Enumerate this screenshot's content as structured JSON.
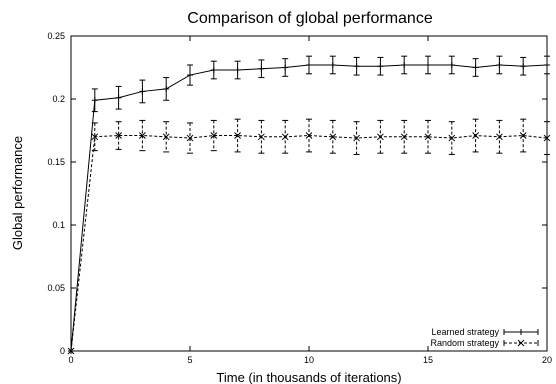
{
  "chart_data": {
    "type": "line",
    "title": "Comparison of global performance",
    "xlabel": "Time (in thousands of iterations)",
    "ylabel": "Global performance",
    "xlim": [
      0,
      20
    ],
    "ylim": [
      0,
      0.25
    ],
    "x_ticks": [
      "0",
      "5",
      "10",
      "15",
      "20"
    ],
    "y_ticks": [
      "0",
      "0.05",
      "0.1",
      "0.15",
      "0.2",
      "0.25"
    ],
    "grid": false,
    "legend_position": "bottom-right",
    "x": [
      0,
      1,
      2,
      3,
      4,
      5,
      6,
      7,
      8,
      9,
      10,
      11,
      12,
      13,
      14,
      15,
      16,
      17,
      18,
      19,
      20
    ],
    "series": [
      {
        "name": "Learned strategy",
        "style": "solid",
        "marker": "plus",
        "color": "#000000",
        "values": [
          0,
          0.199,
          0.201,
          0.206,
          0.208,
          0.219,
          0.223,
          0.223,
          0.224,
          0.225,
          0.227,
          0.227,
          0.226,
          0.226,
          0.227,
          0.227,
          0.227,
          0.225,
          0.227,
          0.226,
          0.227
        ],
        "error": [
          0,
          0.009,
          0.009,
          0.009,
          0.009,
          0.008,
          0.007,
          0.007,
          0.007,
          0.007,
          0.007,
          0.007,
          0.007,
          0.007,
          0.007,
          0.007,
          0.007,
          0.007,
          0.007,
          0.007,
          0.007
        ]
      },
      {
        "name": "Random strategy",
        "style": "dashed",
        "marker": "x",
        "color": "#000000",
        "values": [
          0,
          0.17,
          0.171,
          0.171,
          0.17,
          0.169,
          0.171,
          0.171,
          0.17,
          0.17,
          0.171,
          0.17,
          0.169,
          0.17,
          0.17,
          0.17,
          0.169,
          0.171,
          0.17,
          0.171,
          0.169
        ],
        "error": [
          0,
          0.011,
          0.011,
          0.012,
          0.012,
          0.012,
          0.012,
          0.013,
          0.013,
          0.013,
          0.013,
          0.013,
          0.013,
          0.013,
          0.013,
          0.013,
          0.013,
          0.013,
          0.013,
          0.013,
          0.013
        ]
      }
    ]
  }
}
